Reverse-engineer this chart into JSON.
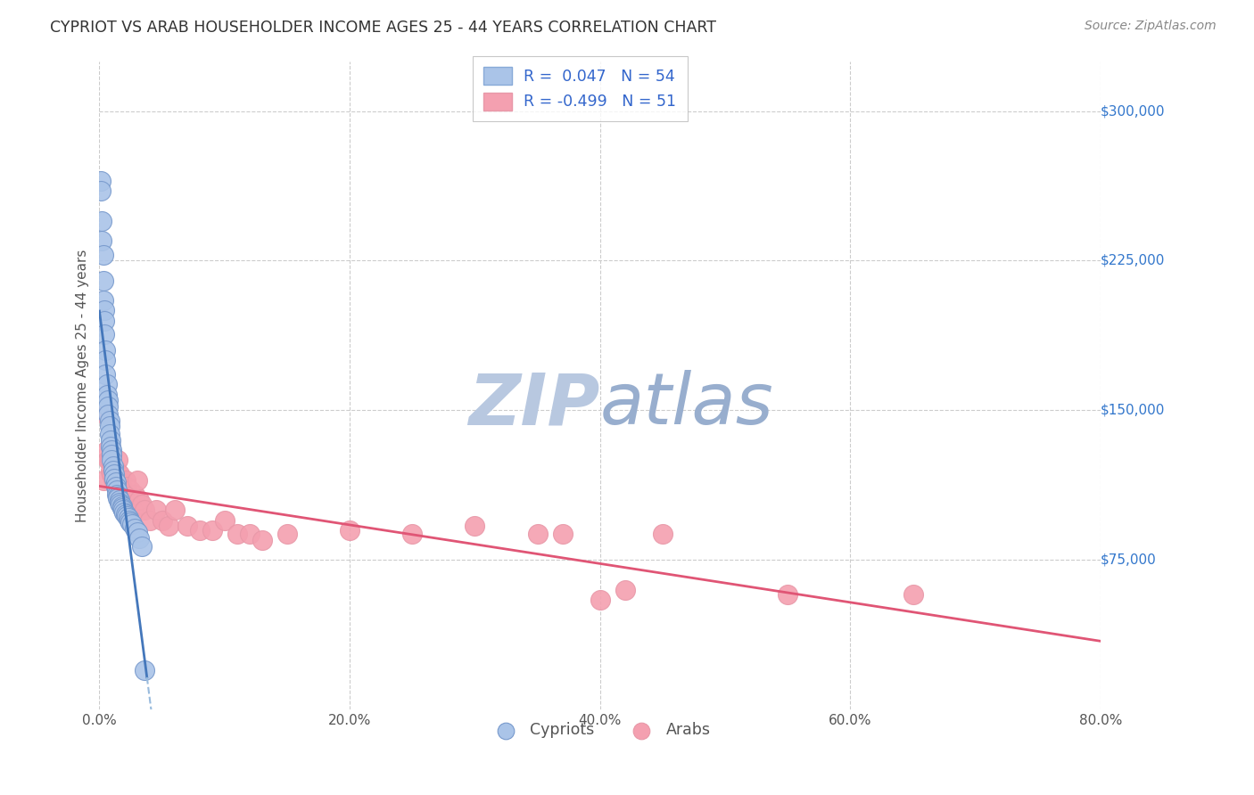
{
  "title": "CYPRIOT VS ARAB HOUSEHOLDER INCOME AGES 25 - 44 YEARS CORRELATION CHART",
  "source": "Source: ZipAtlas.com",
  "ylabel": "Householder Income Ages 25 - 44 years",
  "xmin": 0.0,
  "xmax": 0.8,
  "ymin": 0,
  "ymax": 325000,
  "yticks": [
    75000,
    150000,
    225000,
    300000
  ],
  "ytick_labels": [
    "$75,000",
    "$150,000",
    "$225,000",
    "$300,000"
  ],
  "xticks": [
    0.0,
    0.2,
    0.4,
    0.6,
    0.8
  ],
  "xtick_labels": [
    "0.0%",
    "20.0%",
    "40.0%",
    "60.0%",
    "80.0%"
  ],
  "background_color": "#ffffff",
  "grid_color": "#cccccc",
  "cypriot_color": "#aac4e8",
  "arab_color": "#f4a0b0",
  "cypriot_line_color": "#4477bb",
  "arab_line_color": "#e05575",
  "cypriot_dash_color": "#99bbdd",
  "watermark_zip_color": "#c0d0e8",
  "watermark_atlas_color": "#aabbdd",
  "legend_cypriot_R": "0.047",
  "legend_cypriot_N": "54",
  "legend_arab_R": "-0.499",
  "legend_arab_N": "51",
  "cypriot_scatter_x": [
    0.001,
    0.001,
    0.002,
    0.002,
    0.003,
    0.003,
    0.003,
    0.004,
    0.004,
    0.004,
    0.005,
    0.005,
    0.005,
    0.006,
    0.006,
    0.007,
    0.007,
    0.007,
    0.008,
    0.008,
    0.008,
    0.009,
    0.009,
    0.01,
    0.01,
    0.01,
    0.011,
    0.011,
    0.012,
    0.012,
    0.013,
    0.013,
    0.014,
    0.014,
    0.015,
    0.015,
    0.016,
    0.016,
    0.017,
    0.018,
    0.018,
    0.019,
    0.02,
    0.021,
    0.022,
    0.023,
    0.024,
    0.025,
    0.026,
    0.028,
    0.03,
    0.032,
    0.034,
    0.036
  ],
  "cypriot_scatter_y": [
    265000,
    260000,
    245000,
    235000,
    228000,
    215000,
    205000,
    200000,
    195000,
    188000,
    180000,
    175000,
    168000,
    163000,
    158000,
    155000,
    152000,
    148000,
    145000,
    142000,
    138000,
    135000,
    132000,
    130000,
    128000,
    125000,
    122000,
    120000,
    118000,
    116000,
    114000,
    112000,
    110000,
    108000,
    107000,
    106000,
    105000,
    104000,
    103000,
    102000,
    101000,
    100000,
    99000,
    98000,
    97000,
    96000,
    95000,
    94000,
    93000,
    91000,
    89000,
    86000,
    82000,
    20000
  ],
  "arab_scatter_x": [
    0.003,
    0.005,
    0.006,
    0.007,
    0.008,
    0.009,
    0.01,
    0.011,
    0.012,
    0.013,
    0.014,
    0.015,
    0.016,
    0.017,
    0.018,
    0.019,
    0.02,
    0.021,
    0.022,
    0.023,
    0.024,
    0.025,
    0.027,
    0.028,
    0.03,
    0.032,
    0.034,
    0.036,
    0.04,
    0.045,
    0.05,
    0.055,
    0.06,
    0.07,
    0.08,
    0.09,
    0.1,
    0.11,
    0.12,
    0.13,
    0.15,
    0.2,
    0.25,
    0.3,
    0.35,
    0.37,
    0.4,
    0.42,
    0.45,
    0.55,
    0.65
  ],
  "arab_scatter_y": [
    115000,
    148000,
    130000,
    125000,
    125000,
    120000,
    118000,
    116000,
    115000,
    113000,
    120000,
    125000,
    118000,
    115000,
    112000,
    110000,
    108000,
    115000,
    112000,
    108000,
    105000,
    110000,
    100000,
    108000,
    115000,
    105000,
    103000,
    100000,
    95000,
    100000,
    95000,
    92000,
    100000,
    92000,
    90000,
    90000,
    95000,
    88000,
    88000,
    85000,
    88000,
    90000,
    88000,
    92000,
    88000,
    88000,
    55000,
    60000,
    88000,
    58000,
    58000
  ]
}
